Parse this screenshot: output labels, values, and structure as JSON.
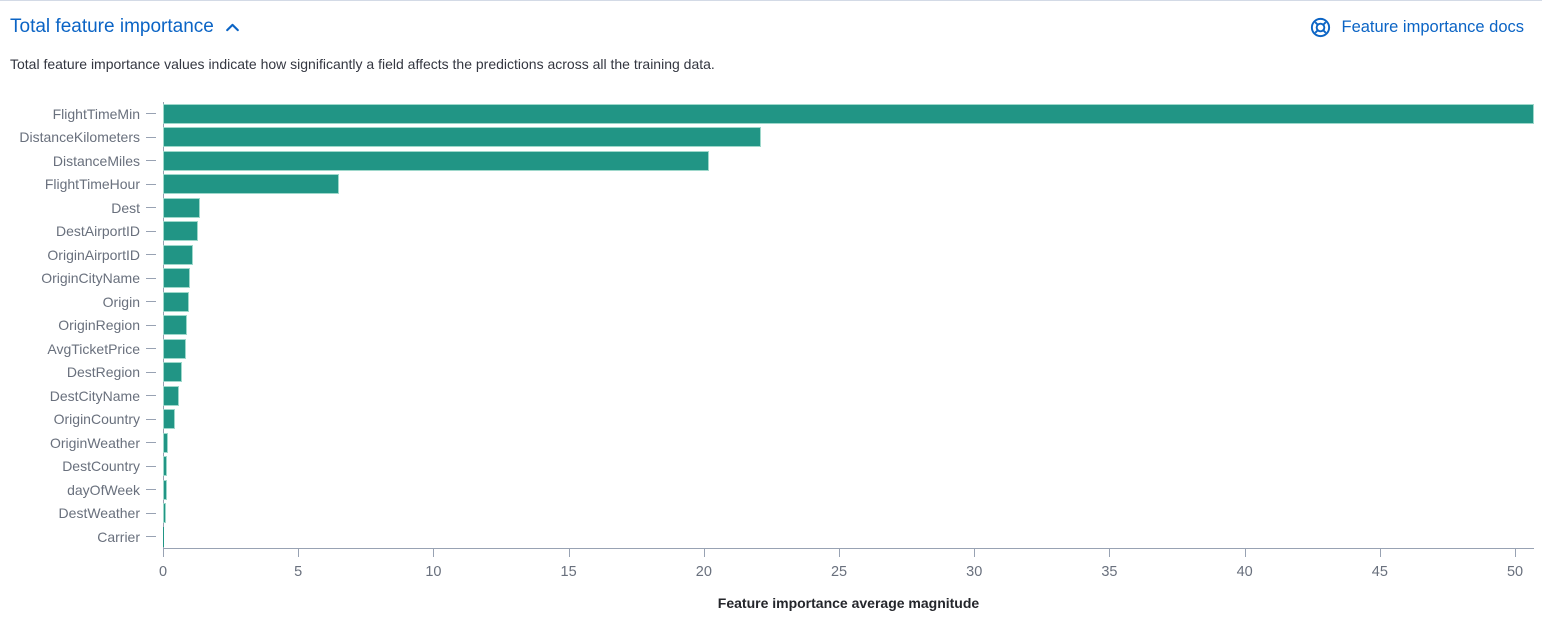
{
  "header": {
    "title": "Total feature importance",
    "docs_link_label": "Feature importance docs"
  },
  "description": "Total feature importance values indicate how significantly a field affects the predictions across all the training data.",
  "icons": {
    "accordion_state": "chevron-up-icon",
    "docs": "life-ring-help-icon"
  },
  "colors": {
    "bar": "#219585",
    "bar_border": "#9ed8cb",
    "link": "#0b64c5",
    "axis_line": "#98a2b3",
    "axis_label": "#69707d",
    "text": "#343741"
  },
  "chart_data": {
    "type": "bar",
    "orientation": "horizontal",
    "title": "",
    "xlabel": "Feature importance average magnitude",
    "ylabel": "",
    "categories": [
      "FlightTimeMin",
      "DistanceKilometers",
      "DistanceMiles",
      "FlightTimeHour",
      "Dest",
      "DestAirportID",
      "OriginAirportID",
      "OriginCityName",
      "Origin",
      "OriginRegion",
      "AvgTicketPrice",
      "DestRegion",
      "DestCityName",
      "OriginCountry",
      "OriginWeather",
      "DestCountry",
      "dayOfWeek",
      "DestWeather",
      "Carrier"
    ],
    "values": [
      50.7,
      22.1,
      20.2,
      6.5,
      1.35,
      1.3,
      1.1,
      1.0,
      0.95,
      0.9,
      0.85,
      0.7,
      0.6,
      0.45,
      0.2,
      0.16,
      0.15,
      0.12,
      0.04
    ],
    "xlim": [
      0,
      50.7
    ],
    "x_ticks": [
      0,
      5,
      10,
      15,
      20,
      25,
      30,
      35,
      40,
      45,
      50
    ],
    "grid": false,
    "legend": "none"
  }
}
